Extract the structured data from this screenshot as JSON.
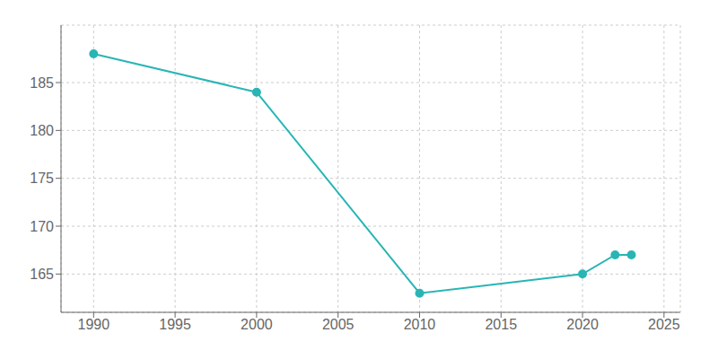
{
  "chart_data": {
    "type": "line",
    "x": [
      1990,
      2000,
      2010,
      2020,
      2022,
      2023
    ],
    "values": [
      188,
      184,
      163,
      165,
      167,
      167
    ],
    "color": "#2ab5b5",
    "marker": "circle",
    "xlim": [
      1988,
      2026
    ],
    "ylim": [
      161,
      191
    ],
    "xticks": [
      1990,
      1995,
      2000,
      2005,
      2010,
      2015,
      2020,
      2025
    ],
    "yticks": [
      165,
      170,
      175,
      180,
      185
    ],
    "grid": true
  }
}
